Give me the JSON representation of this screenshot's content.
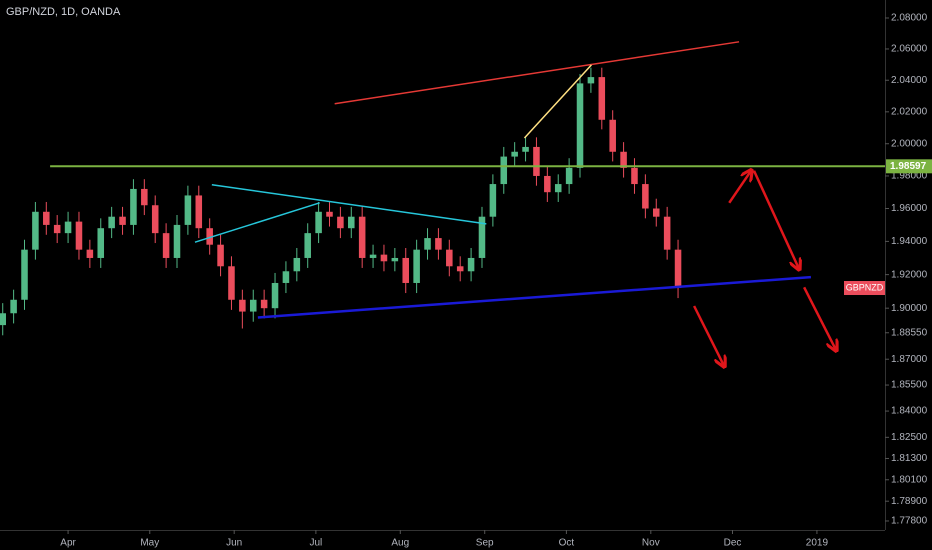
{
  "chart_data": {
    "type": "candlestick",
    "title": "GBP/NZD, 1D, OANDA",
    "symbol_tag": "GBPNZD",
    "log_scale": true,
    "up_color": "#53b987",
    "down_color": "#eb4d5c",
    "xlim": [
      65,
      390
    ],
    "xticks": [
      {
        "value": 90,
        "label": "Apr"
      },
      {
        "value": 120,
        "label": "May"
      },
      {
        "value": 151,
        "label": "Jun"
      },
      {
        "value": 181,
        "label": "Jul"
      },
      {
        "value": 212,
        "label": "Aug"
      },
      {
        "value": 243,
        "label": "Sep"
      },
      {
        "value": 273,
        "label": "Oct"
      },
      {
        "value": 304,
        "label": "Nov"
      },
      {
        "value": 334,
        "label": "Dec"
      },
      {
        "value": 365,
        "label": "2019"
      }
    ],
    "ylim": [
      1.773,
      2.0917
    ],
    "yticks": [
      {
        "value": 2.08,
        "label": "2.08000"
      },
      {
        "value": 2.06,
        "label": "2.06000"
      },
      {
        "value": 2.04,
        "label": "2.04000"
      },
      {
        "value": 2.02,
        "label": "2.02000"
      },
      {
        "value": 2.0,
        "label": "2.00000"
      },
      {
        "value": 1.98,
        "label": "1.98000"
      },
      {
        "value": 1.96,
        "label": "1.96000"
      },
      {
        "value": 1.94,
        "label": "1.94000"
      },
      {
        "value": 1.92,
        "label": "1.92000"
      },
      {
        "value": 1.9,
        "label": "1.90000"
      },
      {
        "value": 1.8855,
        "label": "1.88550"
      },
      {
        "value": 1.87,
        "label": "1.87000"
      },
      {
        "value": 1.855,
        "label": "1.85500"
      },
      {
        "value": 1.84,
        "label": "1.84000"
      },
      {
        "value": 1.825,
        "label": "1.82500"
      },
      {
        "value": 1.813,
        "label": "1.81300"
      },
      {
        "value": 1.801,
        "label": "1.80100"
      },
      {
        "value": 1.789,
        "label": "1.78900"
      },
      {
        "value": 1.778,
        "label": "1.77800"
      }
    ],
    "x": [
      66,
      70,
      74,
      78,
      82,
      86,
      90,
      94,
      98,
      102,
      106,
      110,
      114,
      118,
      122,
      126,
      130,
      134,
      138,
      142,
      146,
      150,
      154,
      158,
      162,
      166,
      170,
      174,
      178,
      182,
      186,
      190,
      194,
      198,
      202,
      206,
      210,
      214,
      218,
      222,
      226,
      230,
      234,
      238,
      242,
      246,
      250,
      254,
      258,
      262,
      266,
      270,
      274,
      278,
      282,
      286,
      290,
      294,
      298,
      302,
      306,
      310,
      314
    ],
    "open": [
      1.89,
      1.897,
      1.905,
      1.935,
      1.958,
      1.95,
      1.945,
      1.952,
      1.935,
      1.93,
      1.948,
      1.955,
      1.95,
      1.972,
      1.962,
      1.945,
      1.93,
      1.95,
      1.968,
      1.948,
      1.938,
      1.925,
      1.905,
      1.898,
      1.905,
      1.9,
      1.915,
      1.922,
      1.93,
      1.945,
      1.958,
      1.955,
      1.948,
      1.955,
      1.93,
      1.932,
      1.928,
      1.93,
      1.915,
      1.935,
      1.942,
      1.935,
      1.925,
      1.922,
      1.93,
      1.955,
      1.975,
      1.992,
      1.995,
      1.998,
      1.98,
      1.97,
      1.975,
      1.985,
      2.038,
      2.042,
      2.015,
      1.995,
      1.985,
      1.975,
      1.96,
      1.955,
      1.935
    ],
    "high": [
      1.903,
      1.911,
      1.941,
      1.964,
      1.964,
      1.956,
      1.958,
      1.958,
      1.941,
      1.954,
      1.961,
      1.961,
      1.978,
      1.978,
      1.968,
      1.951,
      1.956,
      1.974,
      1.974,
      1.954,
      1.944,
      1.931,
      1.911,
      1.911,
      1.911,
      1.921,
      1.928,
      1.936,
      1.951,
      1.964,
      1.964,
      1.961,
      1.961,
      1.961,
      1.938,
      1.938,
      1.936,
      1.936,
      1.941,
      1.948,
      1.948,
      1.941,
      1.931,
      1.936,
      1.961,
      1.981,
      1.998,
      2.001,
      2.004,
      2.004,
      1.986,
      1.981,
      1.991,
      2.044,
      2.048,
      2.048,
      2.021,
      2.001,
      1.991,
      1.981,
      1.966,
      1.961,
      1.941
    ],
    "low": [
      1.884,
      1.891,
      1.899,
      1.929,
      1.944,
      1.939,
      1.939,
      1.929,
      1.924,
      1.924,
      1.942,
      1.944,
      1.944,
      1.956,
      1.939,
      1.924,
      1.924,
      1.944,
      1.942,
      1.932,
      1.919,
      1.899,
      1.888,
      1.892,
      1.894,
      1.894,
      1.909,
      1.916,
      1.924,
      1.939,
      1.949,
      1.942,
      1.942,
      1.924,
      1.924,
      1.922,
      1.922,
      1.909,
      1.909,
      1.929,
      1.929,
      1.919,
      1.916,
      1.916,
      1.924,
      1.949,
      1.969,
      1.986,
      1.989,
      1.974,
      1.964,
      1.964,
      1.969,
      1.979,
      2.032,
      2.009,
      1.989,
      1.979,
      1.969,
      1.954,
      1.949,
      1.929,
      1.906
    ],
    "close": [
      1.897,
      1.905,
      1.935,
      1.958,
      1.95,
      1.945,
      1.952,
      1.935,
      1.93,
      1.948,
      1.955,
      1.95,
      1.972,
      1.962,
      1.945,
      1.93,
      1.95,
      1.968,
      1.948,
      1.938,
      1.925,
      1.905,
      1.898,
      1.905,
      1.9,
      1.915,
      1.922,
      1.93,
      1.945,
      1.958,
      1.955,
      1.948,
      1.955,
      1.93,
      1.932,
      1.928,
      1.93,
      1.915,
      1.935,
      1.942,
      1.935,
      1.925,
      1.922,
      1.93,
      1.955,
      1.975,
      1.992,
      1.995,
      1.998,
      1.98,
      1.97,
      1.975,
      1.985,
      2.038,
      2.042,
      2.015,
      1.995,
      1.985,
      1.975,
      1.96,
      1.955,
      1.935,
      1.912
    ],
    "hline": {
      "value": 1.98597,
      "color": "#7cb342",
      "x_start": 83.4
    },
    "lines": [
      {
        "color": "#e53935",
        "x": [
          187.9,
          336.4
        ],
        "y": [
          2.0251,
          2.0646
        ]
      },
      {
        "color": "#ffe082",
        "x": [
          257.6,
          282.2
        ],
        "y": [
          2.0036,
          2.0498
        ]
      },
      {
        "color": "#26c6da",
        "x": [
          142.8,
          243.6
        ],
        "y": [
          1.9746,
          1.9506
        ]
      },
      {
        "color": "#26c6da",
        "x": [
          136.6,
          182.4
        ],
        "y": [
          1.9395,
          1.9635
        ]
      },
      {
        "color": "#1a1ad6",
        "x": [
          159.7,
          362.8
        ],
        "y": [
          1.8945,
          1.9185
        ]
      }
    ],
    "arrows": [
      {
        "color": "#e0161b",
        "x": [
          319.9,
          330.9
        ],
        "y": [
          1.9013,
          1.8661
        ]
      },
      {
        "color": "#e0161b",
        "x": [
          332.8,
          340.8
        ],
        "y": [
          1.9635,
          1.9832
        ]
      },
      {
        "color": "#e0161b",
        "x": [
          341.9,
          358.4
        ],
        "y": [
          1.9832,
          1.9235
        ]
      },
      {
        "color": "#e0161b",
        "x": [
          360.3,
          372.0
        ],
        "y": [
          1.9124,
          1.8754
        ]
      }
    ]
  }
}
